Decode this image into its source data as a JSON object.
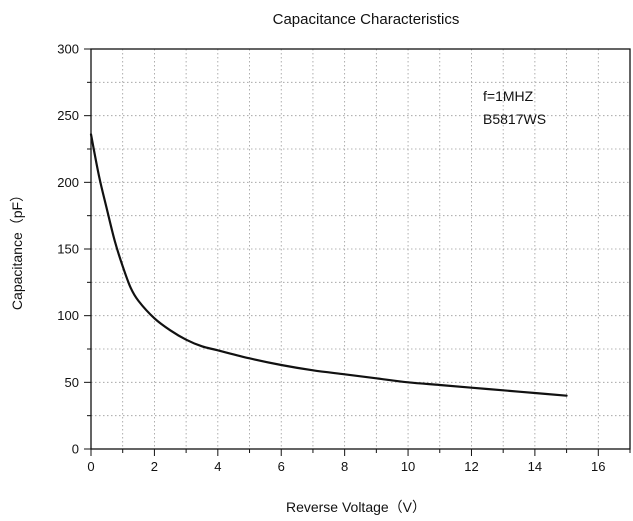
{
  "chart_data": {
    "type": "line",
    "title": "Capacitance Characteristics",
    "xlabel": "Reverse Voltage（V）",
    "ylabel": "Capacitance（pF）",
    "xlim": [
      0,
      17
    ],
    "ylim": [
      0,
      300
    ],
    "x_ticks": [
      0,
      2,
      4,
      6,
      8,
      10,
      12,
      14,
      16
    ],
    "y_ticks": [
      0,
      50,
      100,
      150,
      200,
      250,
      300
    ],
    "grid": true,
    "annotations": [
      "f=1MHZ",
      "B5817WS"
    ],
    "series": [
      {
        "color": "#111111",
        "x": [
          0,
          0.25,
          0.5,
          0.75,
          1.0,
          1.25,
          1.5,
          2.0,
          2.5,
          3.0,
          3.5,
          4.0,
          5.0,
          6.0,
          7.0,
          8.0,
          9.0,
          10.0,
          11.0,
          12.0,
          13.0,
          14.0,
          15.0
        ],
        "y": [
          236,
          205,
          180,
          156,
          137,
          121,
          111,
          98,
          89,
          82,
          77,
          74,
          68,
          63,
          59,
          56,
          53,
          50,
          48,
          46,
          44,
          42,
          40
        ]
      }
    ]
  }
}
